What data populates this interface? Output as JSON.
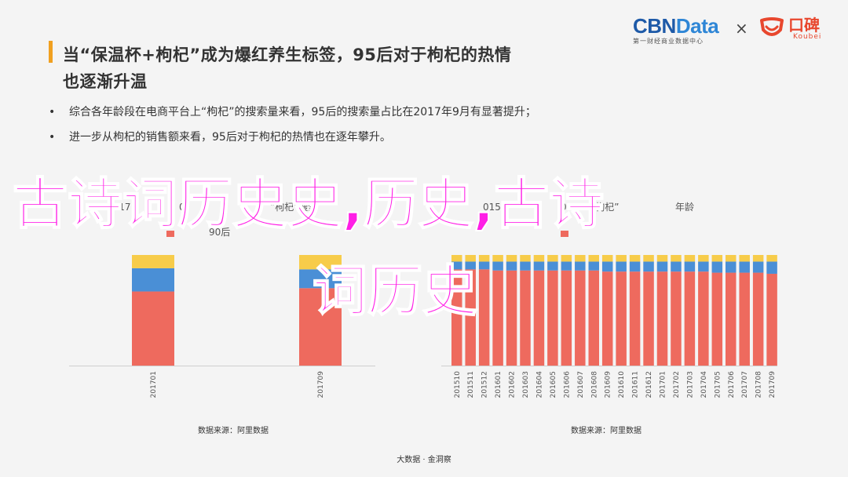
{
  "heading": {
    "line1": "当“保温杯+枸杞”成为爆红养生标签，95后对于枸杞的热情",
    "line2": "也逐渐升温"
  },
  "bullets": [
    "综合各年龄段在电商平台上“枸杞”的搜索量来看，95后的搜索量占比在2017年9月有显著提升；",
    "进一步从枸杞的销售额来看，95后对于枸杞的热情也在逐年攀升。"
  ],
  "logos": {
    "cbn_main": "CBN",
    "cbn_data": "Data",
    "cbn_sub": "第一财经商业数据中心",
    "times": "×",
    "koubei": "口碑",
    "koubei_sub": "Koubei"
  },
  "overlay": {
    "line1": "古诗词历史史,历史,古诗",
    "line2": "词历史"
  },
  "colors": {
    "red": "#ee6a5e",
    "blue": "#4a8fd6",
    "yellow": "#f7cc4a",
    "accent": "#f0a020",
    "overlay": "#ff1ee6"
  },
  "chart_data": [
    {
      "type": "bar",
      "stacked": true,
      "title_fragments": [
        "2017",
        "0",
        "“枸杞”搜索",
        "90后"
      ],
      "categories": [
        "201701",
        "201709"
      ],
      "series": [
        {
          "name": "90后",
          "values": [
            0.67,
            0.7
          ]
        },
        {
          "values": [
            0.21,
            0.17
          ]
        },
        {
          "values": [
            0.12,
            0.13
          ]
        }
      ],
      "ylim": [
        0,
        1
      ],
      "source": "数据来源：阿里数据"
    },
    {
      "type": "bar",
      "stacked": true,
      "title_fragments": [
        "015",
        "0",
        "“枸杞”",
        "年龄"
      ],
      "categories": [
        "201510",
        "201511",
        "201512",
        "201601",
        "201602",
        "201603",
        "201604",
        "201605",
        "201606",
        "201607",
        "201608",
        "201609",
        "201610",
        "201611",
        "201612",
        "201701",
        "201702",
        "201703",
        "201704",
        "201705",
        "201706",
        "201707",
        "201708",
        "201709"
      ],
      "series": [
        {
          "values": [
            0.87,
            0.87,
            0.87,
            0.86,
            0.86,
            0.86,
            0.86,
            0.86,
            0.86,
            0.86,
            0.86,
            0.85,
            0.85,
            0.85,
            0.85,
            0.85,
            0.85,
            0.85,
            0.85,
            0.84,
            0.84,
            0.84,
            0.84,
            0.83
          ]
        },
        {
          "values": [
            0.07,
            0.07,
            0.07,
            0.08,
            0.08,
            0.08,
            0.08,
            0.08,
            0.08,
            0.08,
            0.08,
            0.09,
            0.09,
            0.09,
            0.09,
            0.09,
            0.09,
            0.09,
            0.09,
            0.1,
            0.1,
            0.1,
            0.1,
            0.11
          ]
        },
        {
          "values": [
            0.06,
            0.06,
            0.06,
            0.06,
            0.06,
            0.06,
            0.06,
            0.06,
            0.06,
            0.06,
            0.06,
            0.06,
            0.06,
            0.06,
            0.06,
            0.06,
            0.06,
            0.06,
            0.06,
            0.06,
            0.06,
            0.06,
            0.06,
            0.06
          ]
        }
      ],
      "ylim": [
        0,
        1
      ],
      "source": "数据来源：阿里数据"
    }
  ],
  "footer": "大数据 · 金洞察"
}
